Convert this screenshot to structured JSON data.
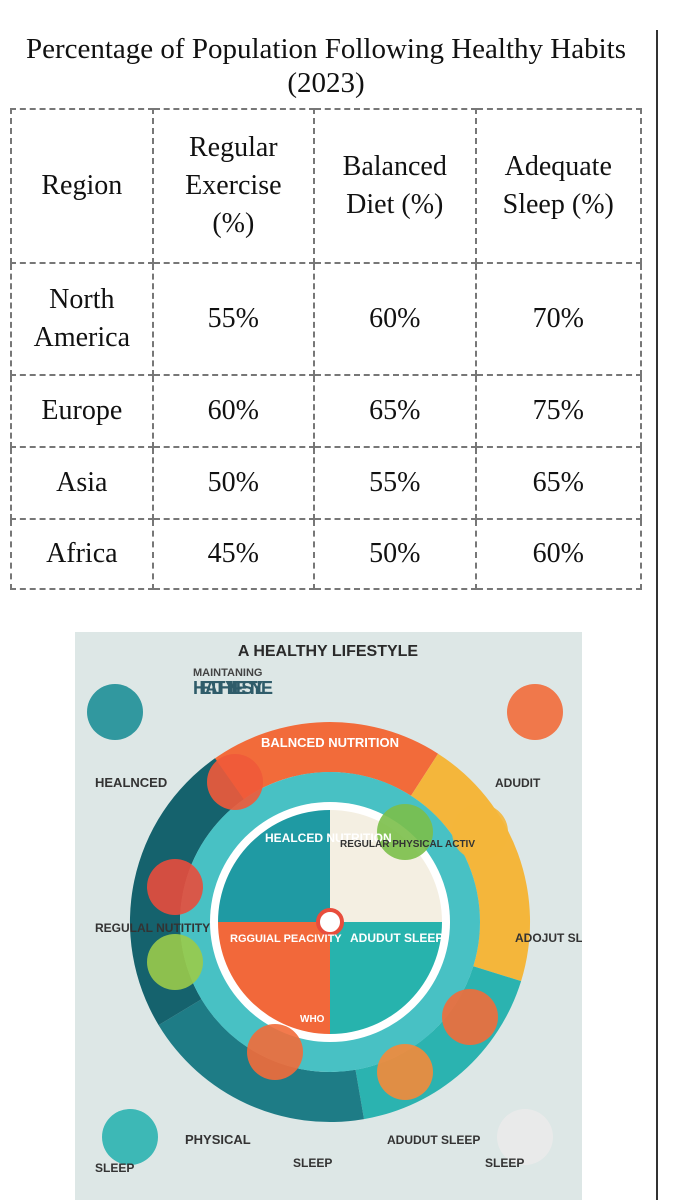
{
  "title": "Percentage of Population Following Healthy Habits (2023)",
  "table": {
    "header": [
      "Region",
      "Regular Exercise (%)",
      "Balanced Diet (%)",
      "Adequate Sleep (%)"
    ],
    "rows": [
      [
        "North America",
        "55%",
        "60%",
        "70%"
      ],
      [
        "Europe",
        "60%",
        "65%",
        "75%"
      ],
      [
        "Asia",
        "50%",
        "55%",
        "65%"
      ],
      [
        "Africa",
        "45%",
        "50%",
        "60%"
      ]
    ]
  },
  "infographic": {
    "title": "A HEALTHY LIFESTYLE",
    "kicker": "MAINTANING",
    "headline": "HEALTHY LIFESTYLE",
    "labels": [
      "BALNCED NUTRITION",
      "HEALNCED",
      "ADUDIT",
      "HEALCED NUTRITION",
      "REGULAR PHYSICAL ACTIV",
      "REGULAL NUTITITY",
      "RGGUIAL PEACIVITY",
      "ADUDUT SLEEP",
      "ADOJUT SLEEP",
      "WHO",
      "PHYSICAL",
      "SLEEP",
      "SLEEP",
      "ADUDUT SLEEP",
      "SLEEP"
    ]
  }
}
